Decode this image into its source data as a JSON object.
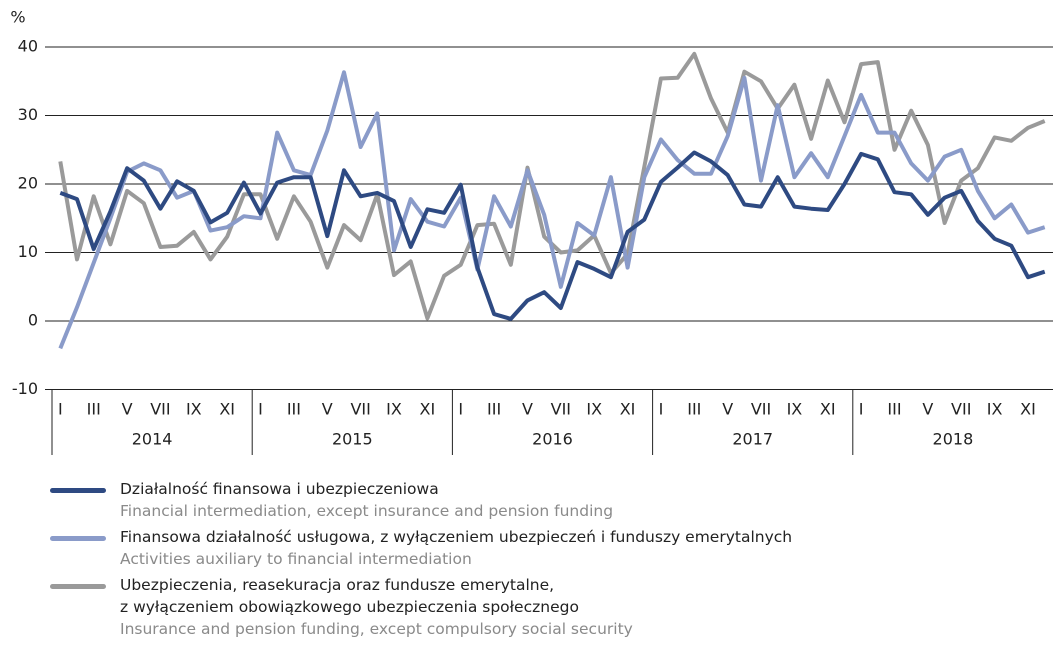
{
  "chart_data": {
    "type": "line",
    "y_label": "%",
    "categories": [
      "I",
      null,
      "III",
      null,
      "V",
      null,
      "VII",
      null,
      "IX",
      null,
      "XI",
      null,
      "I",
      null,
      "III",
      null,
      "V",
      null,
      "VII",
      null,
      "IX",
      null,
      "XI",
      null,
      "I",
      null,
      "III",
      null,
      "V",
      null,
      "VII",
      null,
      "IX",
      null,
      "XI",
      null,
      "I",
      null,
      "III",
      null,
      "V",
      null,
      "VII",
      null,
      "IX",
      null,
      "XI",
      null,
      "I",
      null,
      "III",
      null,
      "V",
      null,
      "VII",
      null,
      "IX",
      null,
      "XI",
      null
    ],
    "years": [
      "2014",
      "2015",
      "2016",
      "2017",
      "2018"
    ],
    "ylim": [
      -10,
      40
    ],
    "yticks": [
      -10,
      0,
      10,
      20,
      30,
      40
    ],
    "grid": true,
    "series": [
      {
        "name": "Działalność finansowa i ubezpieczeniowa",
        "name_en": "Financial intermediation, except insurance and pension funding",
        "color": "#2e4a82",
        "values": [
          18.7,
          17.8,
          10.5,
          16,
          22.3,
          20.5,
          16.4,
          20.4,
          19,
          14.4,
          15.8,
          20.2,
          15.7,
          20.2,
          21,
          21,
          12.4,
          22,
          18.2,
          18.7,
          17.5,
          10.8,
          16.3,
          15.8,
          19.9,
          7.8,
          1,
          0.3,
          3,
          4.2,
          1.9,
          8.6,
          7.6,
          6.4,
          13,
          14.8,
          20.3,
          22.4,
          24.6,
          23.3,
          21.3,
          17,
          16.7,
          21,
          16.7,
          16.4,
          16.2,
          20,
          24.4,
          23.6,
          18.8,
          18.5,
          15.5,
          18,
          19,
          14.6,
          12,
          11,
          6.4,
          7.2
        ]
      },
      {
        "name": "Finansowa działalność usługowa, z wyłączeniem ubezpieczeń i funduszy emerytalnych",
        "name_en": "Activities auxiliary to financial intermediation",
        "color": "#8a9bc9",
        "values": [
          -4,
          2,
          8.5,
          15,
          21.8,
          23,
          22,
          18,
          19,
          13.2,
          13.7,
          15.3,
          15,
          27.5,
          22,
          21.3,
          27.8,
          36.3,
          25.4,
          30.3,
          10.3,
          17.8,
          14.5,
          13.8,
          18,
          7.5,
          18.2,
          13.8,
          22,
          15.5,
          5,
          14.3,
          12.5,
          21,
          7.8,
          21,
          26.5,
          23.5,
          21.5,
          21.5,
          27,
          35.5,
          20.5,
          31.5,
          21,
          24.5,
          21,
          27,
          33,
          27.5,
          27.5,
          23,
          20.5,
          24,
          25,
          19,
          15,
          17,
          12.9,
          13.7
        ]
      },
      {
        "name": "Ubezpieczenia, reasekuracja oraz fundusze emerytalne,\nz wyłączeniem obowiązkowego ubezpieczenia społecznego",
        "name_en": "Insurance and pension funding, except compulsory social security",
        "color": "#9a9a9a",
        "values": [
          23.3,
          9,
          18.2,
          11.2,
          19,
          17.2,
          10.8,
          11,
          13,
          9,
          12.3,
          18.5,
          18.5,
          12,
          18.2,
          14.5,
          7.8,
          14,
          11.8,
          18.5,
          6.7,
          8.7,
          0.4,
          6.6,
          8.2,
          14,
          14.2,
          8.2,
          22.4,
          12.3,
          10,
          10.3,
          12.5,
          7,
          9.8,
          22.5,
          35.4,
          35.5,
          39,
          32.5,
          27.5,
          36.4,
          35,
          31,
          34.5,
          26.6,
          35.1,
          29,
          37.5,
          37.8,
          25,
          30.7,
          25.7,
          14.3,
          20.5,
          22.3,
          26.8,
          26.3,
          28.2,
          29.2
        ]
      }
    ]
  }
}
